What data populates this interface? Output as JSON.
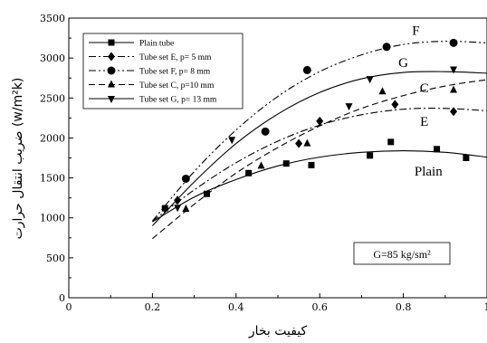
{
  "chart_data": {
    "type": "scatter",
    "xlabel": "کیفیت بخار",
    "ylabel": "ضریب انتقال حرارت (w/m²k)",
    "xlim": [
      0,
      1
    ],
    "ylim": [
      0,
      3500
    ],
    "x_ticks": [
      "0",
      "0.2",
      "0.4",
      "0.6",
      "0.8",
      "1"
    ],
    "y_ticks": [
      "0",
      "500",
      "1000",
      "1500",
      "2000",
      "2500",
      "3000",
      "3500"
    ],
    "legend_position": "top-left",
    "grid": false,
    "series": [
      {
        "name": "Plain tube",
        "marker": "square",
        "line_style": "solid",
        "points": [
          [
            0.23,
            1120
          ],
          [
            0.33,
            1300
          ],
          [
            0.43,
            1560
          ],
          [
            0.52,
            1680
          ],
          [
            0.58,
            1660
          ],
          [
            0.72,
            1780
          ],
          [
            0.77,
            1950
          ],
          [
            0.88,
            1860
          ],
          [
            0.95,
            1750
          ]
        ],
        "curve": [
          [
            0.2,
            950
          ],
          [
            0.3,
            1260
          ],
          [
            0.4,
            1480
          ],
          [
            0.5,
            1650
          ],
          [
            0.6,
            1760
          ],
          [
            0.7,
            1820
          ],
          [
            0.8,
            1840
          ],
          [
            0.9,
            1820
          ],
          [
            1.0,
            1760
          ]
        ]
      },
      {
        "name": "Tube set E, p= 5 mm",
        "marker": "diamond",
        "line_style": "dashdot",
        "points": [
          [
            0.26,
            1220
          ],
          [
            0.55,
            1930
          ],
          [
            0.6,
            2210
          ],
          [
            0.78,
            2420
          ],
          [
            0.92,
            2330
          ]
        ],
        "curve": [
          [
            0.2,
            960
          ],
          [
            0.3,
            1350
          ],
          [
            0.4,
            1690
          ],
          [
            0.5,
            1960
          ],
          [
            0.6,
            2160
          ],
          [
            0.7,
            2290
          ],
          [
            0.8,
            2360
          ],
          [
            0.9,
            2370
          ],
          [
            1.0,
            2340
          ]
        ]
      },
      {
        "name": "Tube set F, p= 8 mm",
        "marker": "circle",
        "line_style": "dashdotdot",
        "points": [
          [
            0.28,
            1490
          ],
          [
            0.47,
            2080
          ],
          [
            0.57,
            2850
          ],
          [
            0.76,
            3140
          ],
          [
            0.92,
            3190
          ]
        ],
        "curve": [
          [
            0.2,
            960
          ],
          [
            0.3,
            1580
          ],
          [
            0.4,
            2100
          ],
          [
            0.5,
            2520
          ],
          [
            0.6,
            2830
          ],
          [
            0.7,
            3040
          ],
          [
            0.8,
            3170
          ],
          [
            0.9,
            3210
          ],
          [
            1.0,
            3190
          ]
        ]
      },
      {
        "name": "Tube set C, p=10 mm",
        "marker": "triangle-up",
        "line_style": "dashed",
        "points": [
          [
            0.28,
            1110
          ],
          [
            0.46,
            1650
          ],
          [
            0.57,
            1930
          ],
          [
            0.75,
            2580
          ],
          [
            0.92,
            2600
          ]
        ],
        "curve": [
          [
            0.2,
            740
          ],
          [
            0.3,
            1170
          ],
          [
            0.4,
            1560
          ],
          [
            0.5,
            1880
          ],
          [
            0.6,
            2150
          ],
          [
            0.7,
            2370
          ],
          [
            0.8,
            2530
          ],
          [
            0.9,
            2650
          ],
          [
            1.0,
            2730
          ]
        ]
      },
      {
        "name": "Tube set G, p= 13 mm",
        "marker": "triangle-down",
        "line_style": "solid",
        "points": [
          [
            0.26,
            1130
          ],
          [
            0.39,
            1980
          ],
          [
            0.67,
            2400
          ],
          [
            0.72,
            2740
          ],
          [
            0.92,
            2860
          ]
        ],
        "curve": [
          [
            0.2,
            900
          ],
          [
            0.3,
            1450
          ],
          [
            0.4,
            1930
          ],
          [
            0.5,
            2300
          ],
          [
            0.6,
            2570
          ],
          [
            0.7,
            2740
          ],
          [
            0.8,
            2820
          ],
          [
            0.9,
            2830
          ],
          [
            1.0,
            2810
          ]
        ]
      }
    ],
    "annotations": [
      {
        "text": "F",
        "x": 0.83,
        "y": 3290
      },
      {
        "text": "G",
        "x": 0.8,
        "y": 2890
      },
      {
        "text": "C",
        "x": 0.85,
        "y": 2570
      },
      {
        "text": "E",
        "x": 0.85,
        "y": 2150
      },
      {
        "text": "Plain",
        "x": 0.86,
        "y": 1530
      }
    ],
    "note": "G=85 kg/sm²"
  }
}
